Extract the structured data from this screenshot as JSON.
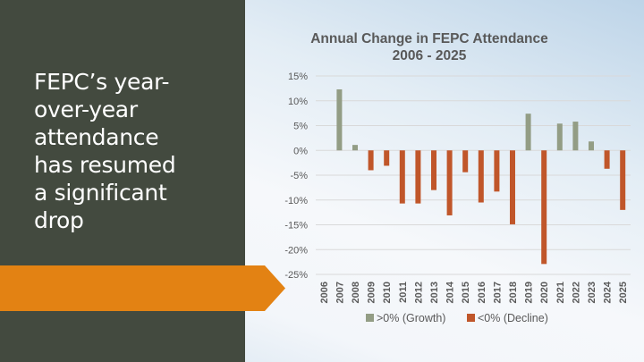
{
  "slide": {
    "headline": "FEPC’s year-over-year attendance has resumed a significant drop",
    "headline_lines": [
      "FEPC’s year-",
      "over-year",
      "attendance",
      "has resumed",
      "a significant",
      "drop"
    ],
    "colors": {
      "panel": "#434a3f",
      "arrow": "#e38213",
      "growth": "#939d85",
      "decline": "#c0562a"
    }
  },
  "chart_data": {
    "type": "bar",
    "title": "Annual Change in FEPC Attendance",
    "subtitle": "2006 - 2025",
    "xlabel": "",
    "ylabel": "",
    "ylim": [
      -25,
      15
    ],
    "yticks": [
      15,
      10,
      5,
      0,
      -5,
      -10,
      -15,
      -20,
      -25
    ],
    "ytick_labels": [
      "15%",
      "10%",
      "5%",
      "0%",
      "-5%",
      "-10%",
      "-15%",
      "-20%",
      "-25%"
    ],
    "grid": true,
    "legend_position": "bottom",
    "categories": [
      "2006",
      "2007",
      "2008",
      "2009",
      "2010",
      "2011",
      "2012",
      "2013",
      "2014",
      "2015",
      "2016",
      "2017",
      "2018",
      "2019",
      "2020",
      "2021",
      "2022",
      "2023",
      "2024",
      "2025"
    ],
    "series": [
      {
        "name": ">0% (Growth)",
        "color": "#939d85",
        "values": [
          null,
          12.3,
          1.1,
          null,
          null,
          null,
          null,
          null,
          null,
          null,
          null,
          null,
          null,
          7.4,
          null,
          5.4,
          5.8,
          1.8,
          null,
          null
        ]
      },
      {
        "name": "<0% (Decline)",
        "color": "#c0562a",
        "values": [
          null,
          null,
          null,
          -4.0,
          -3.1,
          -10.7,
          -10.7,
          -8.0,
          -13.1,
          -4.4,
          -10.5,
          -8.3,
          -14.9,
          null,
          -22.9,
          null,
          null,
          null,
          -3.7,
          -12.0
        ]
      }
    ]
  }
}
